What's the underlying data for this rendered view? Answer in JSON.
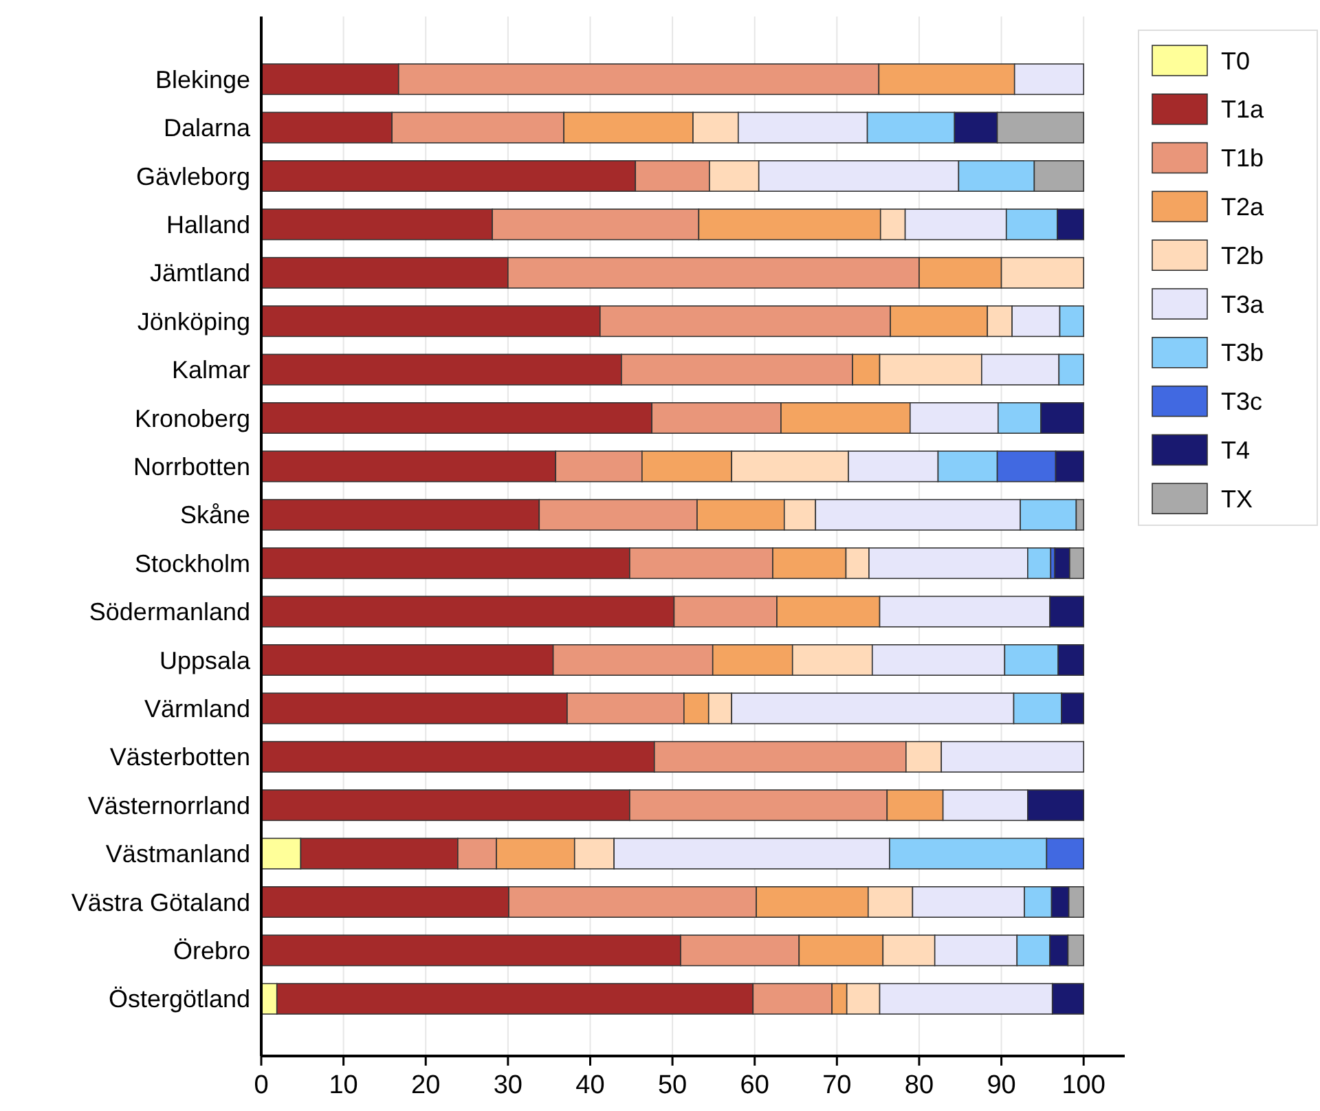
{
  "chart_data": {
    "type": "bar",
    "orientation": "horizontal",
    "stacked": true,
    "categories": [
      "Blekinge",
      "Dalarna",
      "Gävleborg",
      "Halland",
      "Jämtland",
      "Jönköping",
      "Kalmar",
      "Kronoberg",
      "Norrbotten",
      "Skåne",
      "Stockholm",
      "Södermanland",
      "Uppsala",
      "Värmland",
      "Västerbotten",
      "Västernorrland",
      "Västmanland",
      "Västra Götaland",
      "Örebro",
      "Östergötland"
    ],
    "series": [
      {
        "name": "T0",
        "color": "#ffff99",
        "values": [
          null,
          null,
          null,
          null,
          null,
          null,
          null,
          null,
          null,
          null,
          null,
          null,
          null,
          null,
          null,
          null,
          4.8,
          null,
          null,
          1.9
        ]
      },
      {
        "name": "T1a",
        "color": "#a52a2a",
        "values": [
          16.7,
          15.9,
          45.5,
          28.1,
          30,
          41.2,
          43.8,
          47.5,
          35.8,
          33.8,
          44.8,
          50.2,
          35.5,
          37.2,
          47.8,
          44.8,
          19.1,
          30.1,
          51,
          57.9
        ]
      },
      {
        "name": "T1b",
        "color": "#e9967a",
        "values": [
          58.4,
          20.9,
          9,
          25.1,
          50,
          35.3,
          28.1,
          15.7,
          10.5,
          19.2,
          17.4,
          12.5,
          19.4,
          14.2,
          30.6,
          31.3,
          4.7,
          30.1,
          14.4,
          9.6
        ]
      },
      {
        "name": "T2a",
        "color": "#f4a460",
        "values": [
          16.5,
          15.7,
          null,
          22.1,
          10,
          11.8,
          3.3,
          15.7,
          10.9,
          10.6,
          8.9,
          12.5,
          9.7,
          3,
          null,
          6.8,
          9.5,
          13.6,
          10.2,
          1.8
        ]
      },
      {
        "name": "T2b",
        "color": "#ffdab9",
        "values": [
          null,
          5.5,
          6,
          3,
          10,
          3,
          12.4,
          null,
          14.2,
          3.8,
          2.8,
          null,
          9.7,
          2.8,
          4.3,
          null,
          4.8,
          5.4,
          6.3,
          4
        ]
      },
      {
        "name": "T3a",
        "color": "#e6e6fa",
        "values": [
          8.4,
          15.7,
          24.3,
          12.3,
          null,
          5.8,
          9.4,
          10.7,
          10.9,
          24.9,
          19.3,
          20.7,
          16.1,
          34.3,
          17.3,
          10.3,
          33.5,
          13.6,
          10,
          21
        ]
      },
      {
        "name": "T3b",
        "color": "#87cefa",
        "values": [
          null,
          10.6,
          9.2,
          6.2,
          null,
          2.9,
          3,
          5.2,
          7.2,
          6.8,
          2.8,
          null,
          6.5,
          5.8,
          null,
          null,
          19.1,
          3.3,
          4,
          null
        ]
      },
      {
        "name": "T3c",
        "color": "#4169e1",
        "values": [
          null,
          null,
          null,
          null,
          null,
          null,
          null,
          null,
          7.1,
          null,
          0.5,
          null,
          null,
          null,
          null,
          null,
          4.5,
          null,
          null,
          null
        ]
      },
      {
        "name": "T4",
        "color": "#191970",
        "values": [
          null,
          5.2,
          null,
          3.2,
          null,
          null,
          null,
          5.2,
          3.4,
          null,
          1.8,
          4.1,
          3.1,
          2.7,
          null,
          6.8,
          null,
          2.1,
          2.2,
          3.8
        ]
      },
      {
        "name": "TX",
        "color": "#a9a9a9",
        "values": [
          null,
          10.5,
          6,
          null,
          null,
          null,
          null,
          null,
          null,
          0.9,
          1.7,
          null,
          null,
          null,
          null,
          null,
          null,
          1.8,
          1.9,
          null
        ]
      }
    ],
    "xlim": [
      0,
      105
    ],
    "xticks": [
      0,
      10,
      20,
      30,
      40,
      50,
      60,
      70,
      80,
      90,
      100
    ],
    "grid": "x",
    "legend": "top right"
  }
}
